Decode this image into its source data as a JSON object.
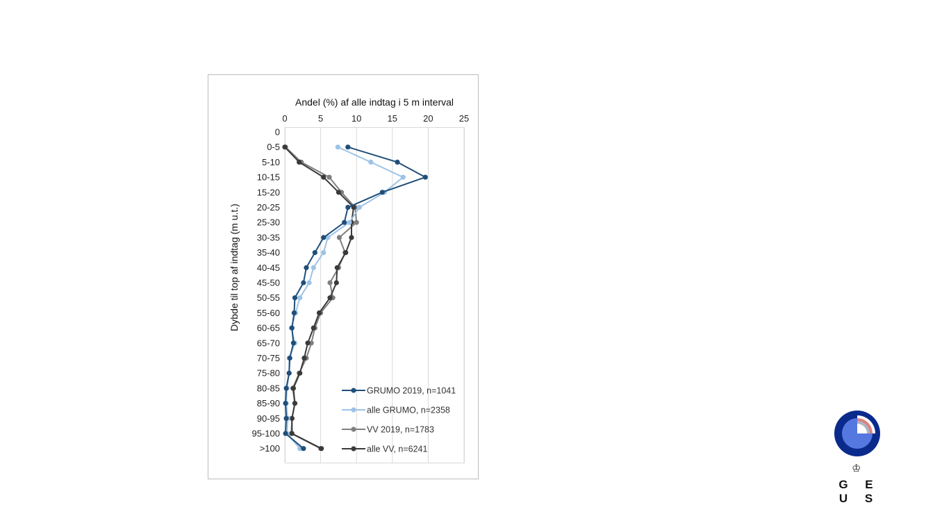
{
  "chart_data": {
    "type": "line",
    "xlabel": "Andel (%) af alle indtag i 5 m interval",
    "ylabel": "Dybde til top af indtag (m u.t.)",
    "xlim": [
      0,
      25
    ],
    "x_ticks": [
      0,
      5,
      10,
      15,
      20,
      25
    ],
    "categories": [
      "0",
      "0-5",
      "5-10",
      "10-15",
      "15-20",
      "20-25",
      "25-30",
      "30-35",
      "35-40",
      "40-45",
      "45-50",
      "50-55",
      "55-60",
      "60-65",
      "65-70",
      "70-75",
      "75-80",
      "80-85",
      "85-90",
      "90-95",
      "95-100",
      ">100"
    ],
    "grid": "vertical",
    "legend_position": "bottom-right",
    "series": [
      {
        "name": "GRUMO 2019, n=1041",
        "color": "#1f4e79",
        "values": [
          null,
          8.8,
          15.7,
          19.6,
          13.6,
          8.8,
          8.3,
          5.4,
          4.2,
          3.0,
          2.6,
          1.4,
          1.3,
          1.0,
          1.2,
          0.7,
          0.6,
          0.2,
          0.1,
          0.2,
          0.1,
          2.6
        ]
      },
      {
        "name": "alle GRUMO, n=2358",
        "color": "#9dc3e6",
        "values": [
          null,
          7.4,
          12.0,
          16.5,
          13.9,
          10.4,
          9.0,
          6.0,
          5.4,
          4.0,
          3.4,
          2.1,
          1.5,
          0.9,
          1.4,
          0.6,
          0.6,
          0.3,
          0.2,
          0.4,
          0.3,
          2.1
        ]
      },
      {
        "name": "VV 2019, n=1783",
        "color": "#7f7f7f",
        "values": [
          null,
          0.1,
          2.3,
          6.2,
          7.9,
          9.8,
          10.0,
          7.6,
          8.4,
          7.5,
          6.3,
          6.7,
          5.0,
          4.2,
          3.7,
          3.0,
          2.0,
          1.1,
          1.4,
          1.0,
          0.9,
          5.0
        ]
      },
      {
        "name": "alle VV, n=6241",
        "color": "#3a3a3a",
        "values": [
          null,
          0.0,
          2.0,
          5.4,
          7.5,
          9.6,
          9.3,
          9.3,
          8.5,
          7.3,
          7.2,
          6.3,
          4.8,
          4.0,
          3.2,
          2.7,
          2.1,
          1.2,
          1.4,
          1.0,
          1.0,
          5.1
        ]
      }
    ]
  },
  "logo": {
    "text": "G E U S",
    "crown": "♔"
  }
}
